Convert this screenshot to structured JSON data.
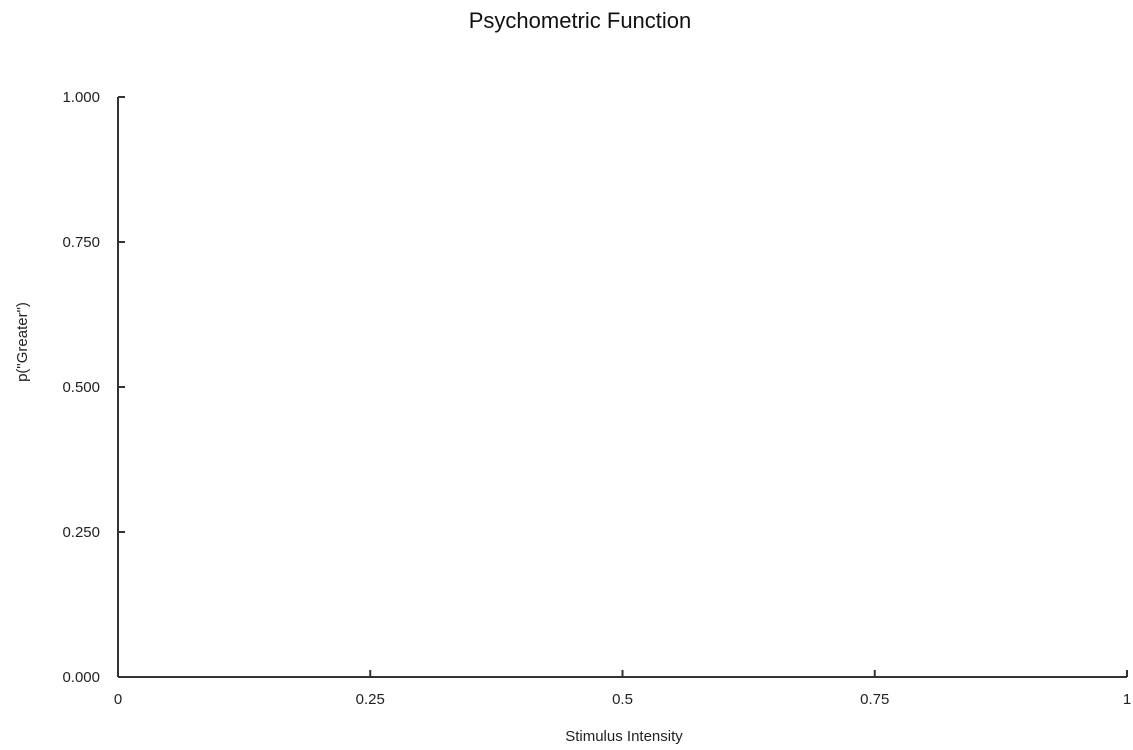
{
  "chart_data": {
    "type": "line",
    "title": "Psychometric Function",
    "xlabel": "Stimulus Intensity",
    "ylabel": "p(\"Greater\")",
    "xlim": [
      0,
      1
    ],
    "ylim": [
      0,
      1
    ],
    "x_ticks": [
      0,
      0.25,
      0.5,
      0.75,
      1
    ],
    "x_tick_labels": [
      "0",
      "0.25",
      "0.5",
      "0.75",
      "1"
    ],
    "y_ticks": [
      0,
      0.25,
      0.5,
      0.75,
      1
    ],
    "y_tick_labels": [
      "0.000",
      "0.250",
      "0.500",
      "0.750",
      "1.000"
    ],
    "grid": false,
    "series": []
  }
}
